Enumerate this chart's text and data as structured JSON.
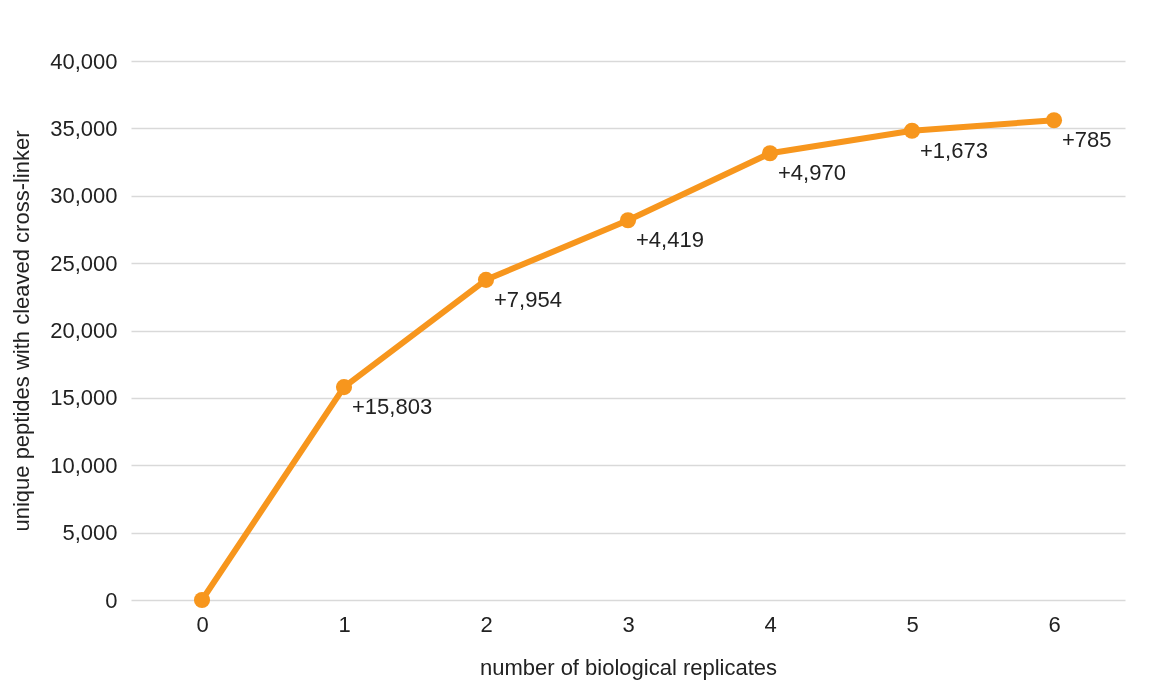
{
  "chart_data": {
    "type": "line",
    "xlabel": "number of biological replicates",
    "ylabel": "unique peptides with cleaved cross-linker",
    "categories": [
      "0",
      "1",
      "2",
      "3",
      "4",
      "5",
      "6"
    ],
    "series": [
      {
        "color": "#f7961d",
        "values": [
          0,
          15800,
          23760,
          28180,
          33150,
          34820,
          35600
        ]
      }
    ],
    "annotations": [
      {
        "text": "+15,803",
        "x": "1",
        "y": 15800
      },
      {
        "text": "+7,954",
        "x": "2",
        "y": 23760
      },
      {
        "text": "+4,419",
        "x": "3",
        "y": 28180
      },
      {
        "text": "+4,970",
        "x": "4",
        "y": 33150
      },
      {
        "text": "+1,673",
        "x": "5",
        "y": 34820
      },
      {
        "text": "+785",
        "x": "6",
        "y": 35600
      }
    ],
    "ylim": [
      0,
      40000
    ],
    "yticks": [
      {
        "value": 0,
        "label": "0"
      },
      {
        "value": 5000,
        "label": "5,000"
      },
      {
        "value": 10000,
        "label": "10,000"
      },
      {
        "value": 15000,
        "label": "15,000"
      },
      {
        "value": 20000,
        "label": "20,000"
      },
      {
        "value": 25000,
        "label": "25,000"
      },
      {
        "value": 30000,
        "label": "30,000"
      },
      {
        "value": 35000,
        "label": "35,000"
      },
      {
        "value": 40000,
        "label": "40,000"
      }
    ],
    "grid": "y",
    "marker": "circle",
    "line_style": "solid"
  }
}
